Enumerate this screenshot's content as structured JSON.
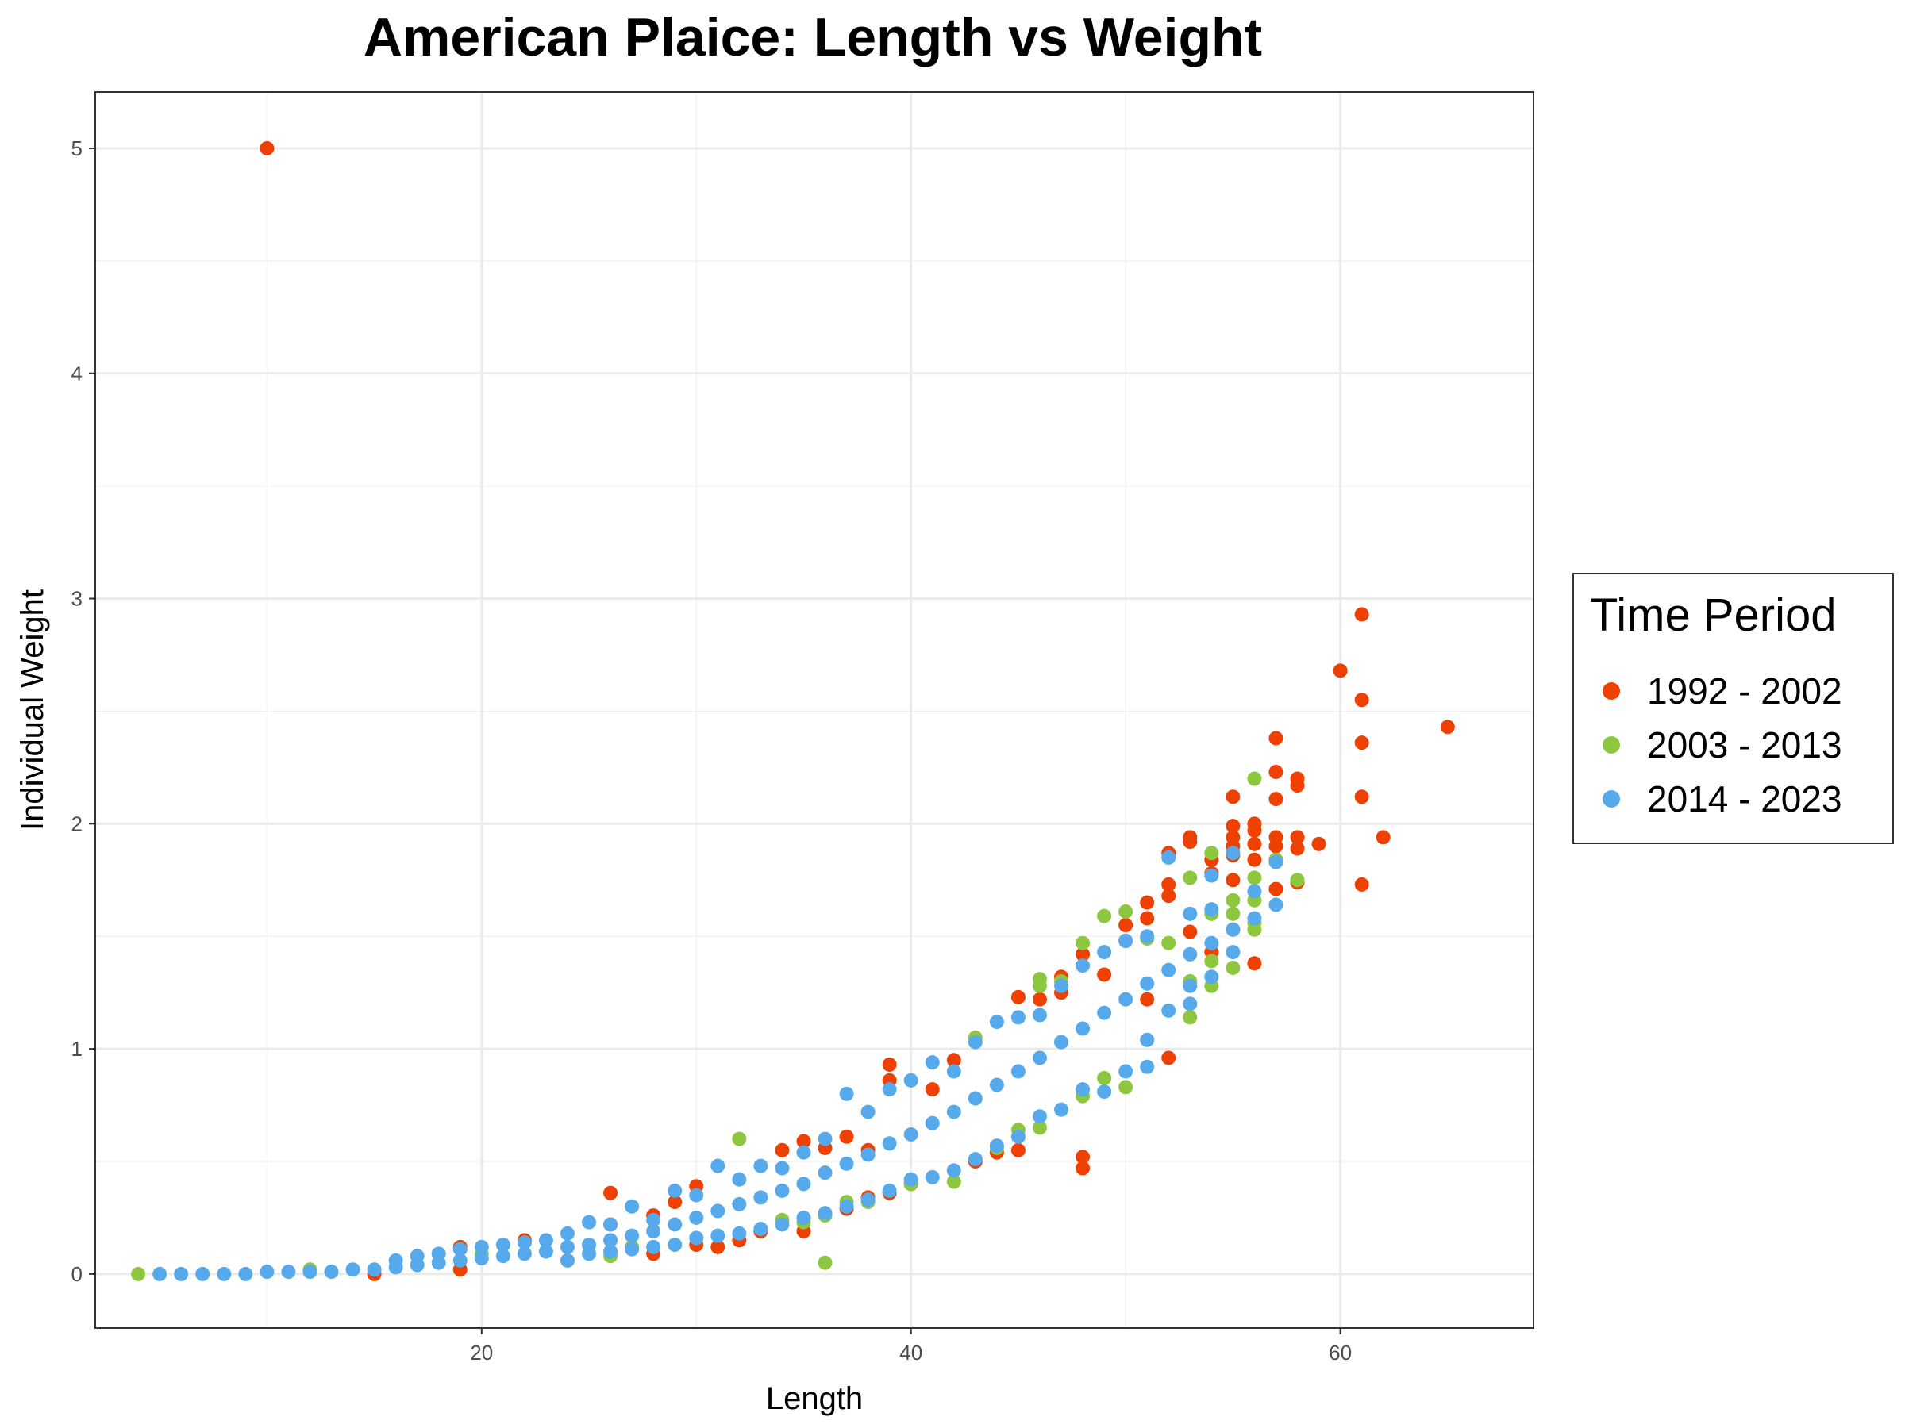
{
  "chart_data": {
    "type": "scatter",
    "title": "American Plaice: Length vs Weight",
    "xlabel": "Length",
    "ylabel": "Individual Weight",
    "xlim": [
      2,
      69
    ],
    "ylim": [
      -0.24,
      5.25
    ],
    "x_ticks": [
      20,
      40,
      60
    ],
    "y_ticks": [
      0,
      1,
      2,
      3,
      4,
      5
    ],
    "grid": true,
    "legend": {
      "title": "Time Period",
      "position": "right"
    },
    "series": [
      {
        "name": "1992 - 2002",
        "color": "#EE4000",
        "points": [
          [
            10,
            5.0
          ],
          [
            15,
            0.0
          ],
          [
            19,
            0.12
          ],
          [
            19,
            0.02
          ],
          [
            22,
            0.15
          ],
          [
            24,
            0.06
          ],
          [
            26,
            0.36
          ],
          [
            26,
            0.22
          ],
          [
            28,
            0.26
          ],
          [
            28,
            0.09
          ],
          [
            29,
            0.32
          ],
          [
            30,
            0.39
          ],
          [
            30,
            0.13
          ],
          [
            31,
            0.12
          ],
          [
            32,
            0.15
          ],
          [
            33,
            0.19
          ],
          [
            34,
            0.55
          ],
          [
            35,
            0.59
          ],
          [
            35,
            0.19
          ],
          [
            36,
            0.56
          ],
          [
            37,
            0.61
          ],
          [
            37,
            0.29
          ],
          [
            38,
            0.55
          ],
          [
            38,
            0.34
          ],
          [
            39,
            0.93
          ],
          [
            39,
            0.86
          ],
          [
            39,
            0.36
          ],
          [
            40,
            0.4
          ],
          [
            41,
            0.82
          ],
          [
            42,
            0.95
          ],
          [
            43,
            0.5
          ],
          [
            44,
            0.54
          ],
          [
            45,
            1.23
          ],
          [
            45,
            0.55
          ],
          [
            46,
            1.22
          ],
          [
            47,
            1.32
          ],
          [
            47,
            1.25
          ],
          [
            48,
            1.42
          ],
          [
            48,
            0.52
          ],
          [
            48,
            0.47
          ],
          [
            49,
            1.33
          ],
          [
            50,
            1.55
          ],
          [
            50,
            1.48
          ],
          [
            51,
            1.65
          ],
          [
            51,
            1.58
          ],
          [
            51,
            1.22
          ],
          [
            52,
            1.87
          ],
          [
            52,
            1.73
          ],
          [
            52,
            1.68
          ],
          [
            52,
            0.96
          ],
          [
            53,
            1.94
          ],
          [
            53,
            1.92
          ],
          [
            53,
            1.52
          ],
          [
            54,
            1.84
          ],
          [
            54,
            1.78
          ],
          [
            54,
            1.43
          ],
          [
            55,
            2.12
          ],
          [
            55,
            1.99
          ],
          [
            55,
            1.94
          ],
          [
            55,
            1.9
          ],
          [
            55,
            1.86
          ],
          [
            55,
            1.75
          ],
          [
            55,
            1.53
          ],
          [
            56,
            2.0
          ],
          [
            56,
            1.97
          ],
          [
            56,
            1.91
          ],
          [
            56,
            1.84
          ],
          [
            56,
            1.38
          ],
          [
            57,
            2.38
          ],
          [
            57,
            2.23
          ],
          [
            57,
            2.11
          ],
          [
            57,
            1.94
          ],
          [
            57,
            1.9
          ],
          [
            57,
            1.84
          ],
          [
            57,
            1.71
          ],
          [
            58,
            2.2
          ],
          [
            58,
            2.17
          ],
          [
            58,
            1.94
          ],
          [
            58,
            1.89
          ],
          [
            58,
            1.74
          ],
          [
            59,
            1.91
          ],
          [
            60,
            2.68
          ],
          [
            61,
            2.93
          ],
          [
            61,
            2.55
          ],
          [
            61,
            2.36
          ],
          [
            61,
            2.12
          ],
          [
            61,
            1.73
          ],
          [
            62,
            1.94
          ],
          [
            65,
            2.43
          ]
        ]
      },
      {
        "name": "2003 - 2013",
        "color": "#8DC63F",
        "points": [
          [
            4,
            0.0
          ],
          [
            12,
            0.02
          ],
          [
            20,
            0.09
          ],
          [
            26,
            0.08
          ],
          [
            27,
            0.12
          ],
          [
            30,
            0.16
          ],
          [
            32,
            0.6
          ],
          [
            34,
            0.24
          ],
          [
            35,
            0.23
          ],
          [
            36,
            0.05
          ],
          [
            36,
            0.26
          ],
          [
            37,
            0.32
          ],
          [
            38,
            0.32
          ],
          [
            40,
            0.4
          ],
          [
            42,
            0.41
          ],
          [
            43,
            1.05
          ],
          [
            44,
            0.56
          ],
          [
            45,
            0.64
          ],
          [
            46,
            1.31
          ],
          [
            46,
            1.28
          ],
          [
            46,
            0.65
          ],
          [
            47,
            1.3
          ],
          [
            48,
            1.47
          ],
          [
            48,
            0.79
          ],
          [
            49,
            1.59
          ],
          [
            49,
            0.87
          ],
          [
            50,
            1.61
          ],
          [
            50,
            0.83
          ],
          [
            51,
            1.49
          ],
          [
            52,
            1.47
          ],
          [
            53,
            1.76
          ],
          [
            53,
            1.3
          ],
          [
            53,
            1.14
          ],
          [
            54,
            1.87
          ],
          [
            54,
            1.6
          ],
          [
            54,
            1.39
          ],
          [
            54,
            1.28
          ],
          [
            55,
            1.66
          ],
          [
            55,
            1.6
          ],
          [
            55,
            1.36
          ],
          [
            56,
            2.2
          ],
          [
            56,
            1.76
          ],
          [
            56,
            1.66
          ],
          [
            56,
            1.56
          ],
          [
            56,
            1.53
          ],
          [
            57,
            1.84
          ],
          [
            58,
            1.75
          ]
        ]
      },
      {
        "name": "2014 - 2023",
        "color": "#56AAEB",
        "points": [
          [
            5,
            0.0
          ],
          [
            6,
            0.0
          ],
          [
            7,
            0.0
          ],
          [
            8,
            0.0
          ],
          [
            9,
            0.0
          ],
          [
            10,
            0.01
          ],
          [
            11,
            0.01
          ],
          [
            12,
            0.01
          ],
          [
            13,
            0.01
          ],
          [
            14,
            0.02
          ],
          [
            15,
            0.02
          ],
          [
            16,
            0.03
          ],
          [
            17,
            0.04
          ],
          [
            18,
            0.05
          ],
          [
            19,
            0.06
          ],
          [
            20,
            0.07
          ],
          [
            21,
            0.08
          ],
          [
            22,
            0.09
          ],
          [
            23,
            0.1
          ],
          [
            24,
            0.12
          ],
          [
            25,
            0.13
          ],
          [
            26,
            0.15
          ],
          [
            27,
            0.17
          ],
          [
            28,
            0.19
          ],
          [
            29,
            0.22
          ],
          [
            30,
            0.25
          ],
          [
            31,
            0.28
          ],
          [
            32,
            0.31
          ],
          [
            33,
            0.34
          ],
          [
            34,
            0.37
          ],
          [
            35,
            0.4
          ],
          [
            36,
            0.45
          ],
          [
            37,
            0.49
          ],
          [
            38,
            0.53
          ],
          [
            39,
            0.58
          ],
          [
            40,
            0.62
          ],
          [
            41,
            0.67
          ],
          [
            42,
            0.72
          ],
          [
            43,
            0.78
          ],
          [
            44,
            0.84
          ],
          [
            45,
            0.9
          ],
          [
            46,
            0.96
          ],
          [
            47,
            1.03
          ],
          [
            48,
            1.09
          ],
          [
            49,
            1.16
          ],
          [
            50,
            1.22
          ],
          [
            51,
            1.29
          ],
          [
            52,
            1.35
          ],
          [
            53,
            1.42
          ],
          [
            54,
            1.47
          ],
          [
            55,
            1.53
          ],
          [
            56,
            1.58
          ],
          [
            57,
            1.64
          ],
          [
            16,
            0.06
          ],
          [
            17,
            0.08
          ],
          [
            18,
            0.09
          ],
          [
            19,
            0.11
          ],
          [
            20,
            0.12
          ],
          [
            21,
            0.13
          ],
          [
            22,
            0.14
          ],
          [
            23,
            0.15
          ],
          [
            24,
            0.18
          ],
          [
            25,
            0.23
          ],
          [
            26,
            0.22
          ],
          [
            27,
            0.3
          ],
          [
            28,
            0.24
          ],
          [
            29,
            0.37
          ],
          [
            30,
            0.35
          ],
          [
            31,
            0.48
          ],
          [
            32,
            0.42
          ],
          [
            33,
            0.48
          ],
          [
            34,
            0.47
          ],
          [
            35,
            0.54
          ],
          [
            36,
            0.6
          ],
          [
            37,
            0.8
          ],
          [
            38,
            0.72
          ],
          [
            39,
            0.82
          ],
          [
            40,
            0.86
          ],
          [
            41,
            0.94
          ],
          [
            42,
            0.9
          ],
          [
            43,
            1.03
          ],
          [
            44,
            1.12
          ],
          [
            45,
            1.14
          ],
          [
            46,
            1.15
          ],
          [
            47,
            1.28
          ],
          [
            48,
            1.37
          ],
          [
            49,
            1.43
          ],
          [
            50,
            1.48
          ],
          [
            51,
            1.5
          ],
          [
            52,
            1.85
          ],
          [
            53,
            1.6
          ],
          [
            54,
            1.77
          ],
          [
            55,
            1.87
          ],
          [
            56,
            1.7
          ],
          [
            57,
            1.83
          ],
          [
            24,
            0.06
          ],
          [
            25,
            0.09
          ],
          [
            26,
            0.1
          ],
          [
            27,
            0.11
          ],
          [
            28,
            0.12
          ],
          [
            29,
            0.13
          ],
          [
            30,
            0.16
          ],
          [
            31,
            0.17
          ],
          [
            32,
            0.18
          ],
          [
            33,
            0.2
          ],
          [
            34,
            0.22
          ],
          [
            35,
            0.25
          ],
          [
            36,
            0.27
          ],
          [
            37,
            0.3
          ],
          [
            38,
            0.33
          ],
          [
            39,
            0.37
          ],
          [
            40,
            0.42
          ],
          [
            41,
            0.43
          ],
          [
            42,
            0.46
          ],
          [
            43,
            0.51
          ],
          [
            44,
            0.57
          ],
          [
            45,
            0.61
          ],
          [
            46,
            0.7
          ],
          [
            47,
            0.73
          ],
          [
            48,
            0.82
          ],
          [
            49,
            0.81
          ],
          [
            50,
            0.9
          ],
          [
            51,
            0.92
          ],
          [
            52,
            1.17
          ],
          [
            53,
            1.2
          ],
          [
            54,
            1.32
          ],
          [
            55,
            1.43
          ],
          [
            51,
            1.04
          ],
          [
            53,
            1.28
          ],
          [
            54,
            1.62
          ]
        ]
      }
    ]
  }
}
